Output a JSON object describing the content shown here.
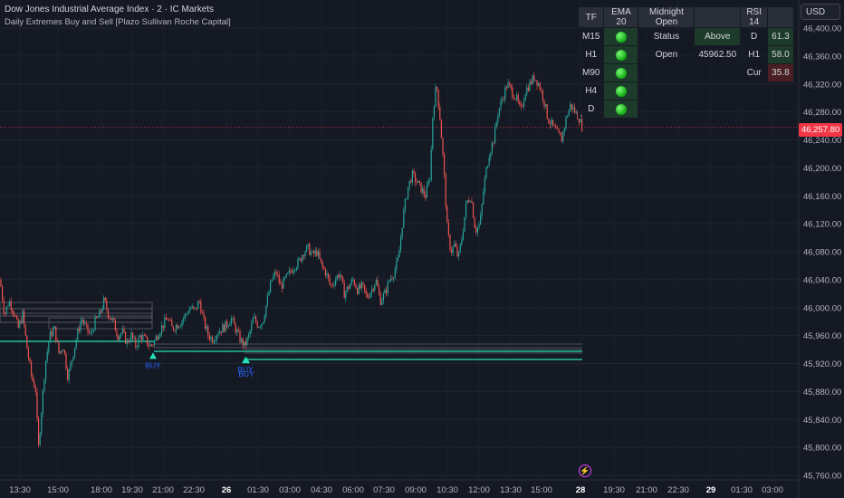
{
  "header": {
    "title": "Dow Jones Industrial Average Index · 2 · IC Markets",
    "subtitle": "Daily Extremes Buy and Sell [Plazo Sullivan Roche Capital]"
  },
  "currency": "USD",
  "last_price": "46,257.80",
  "colors": {
    "background": "#151924",
    "up": "#26a69a",
    "down": "#ef5350",
    "price_tag": "#f23645",
    "signal": "#26e0b8",
    "buy_label": "#2962ff"
  },
  "table": {
    "headers": [
      "TF",
      "EMA 20",
      "Midnight Open",
      "",
      "RSI 14",
      ""
    ],
    "ema_rows": [
      {
        "tf": "M15",
        "status": "green-dot-icon"
      },
      {
        "tf": "H1",
        "status": "green-dot-icon"
      },
      {
        "tf": "M90",
        "status": "green-dot-icon"
      },
      {
        "tf": "H4",
        "status": "green-dot-icon"
      },
      {
        "tf": "D",
        "status": "green-dot-icon"
      }
    ],
    "midnight": [
      {
        "label": "Status",
        "value": "Above"
      },
      {
        "label": "Open",
        "value": "45962.50"
      }
    ],
    "rsi": [
      {
        "tf": "D",
        "value": "61.3"
      },
      {
        "tf": "H1",
        "value": "58.0"
      },
      {
        "tf": "Cur",
        "value": "35.8"
      }
    ]
  },
  "chart_data": {
    "type": "candlestick",
    "y_ticks": [
      46400,
      46360,
      46320,
      46280,
      46240,
      46200,
      46160,
      46120,
      46080,
      46040,
      46000,
      45960,
      45920,
      45880,
      45840,
      45800,
      45760
    ],
    "y_tick_labels": [
      "46,400.00",
      "46,360.00",
      "46,320.00",
      "46,280.00",
      "46,240.00",
      "46,200.00",
      "46,160.00",
      "46,120.00",
      "46,080.00",
      "46,040.00",
      "46,000.00",
      "45,960.00",
      "45,920.00",
      "45,880.00",
      "45,840.00",
      "45,800.00",
      "45,760.00"
    ],
    "ylim": [
      45750,
      46420
    ],
    "x_tick_labels": [
      "13:30",
      "15:00",
      "18:00",
      "19:30",
      "21:00",
      "22:30",
      "26",
      "01:30",
      "03:00",
      "04:30",
      "06:00",
      "07:30",
      "09:00",
      "10:30",
      "12:00",
      "13:30",
      "15:00",
      "28",
      "19:30",
      "21:00",
      "22:30",
      "29",
      "01:30",
      "03:00"
    ],
    "bold_ticks": [
      "26",
      "28",
      "29"
    ],
    "last_price": 46257.8,
    "path": [
      [
        0,
        46040
      ],
      [
        5,
        45990
      ],
      [
        10,
        46010
      ],
      [
        15,
        45995
      ],
      [
        20,
        45970
      ],
      [
        25,
        45990
      ],
      [
        30,
        45940
      ],
      [
        35,
        45900
      ],
      [
        40,
        45880
      ],
      [
        42,
        45790
      ],
      [
        45,
        45840
      ],
      [
        50,
        45920
      ],
      [
        55,
        45960
      ],
      [
        60,
        45970
      ],
      [
        65,
        45935
      ],
      [
        70,
        45945
      ],
      [
        75,
        45900
      ],
      [
        80,
        45930
      ],
      [
        85,
        45960
      ],
      [
        90,
        45985
      ],
      [
        95,
        45970
      ],
      [
        100,
        45960
      ],
      [
        105,
        45980
      ],
      [
        110,
        45990
      ],
      [
        115,
        46010
      ],
      [
        120,
        45990
      ],
      [
        125,
        45980
      ],
      [
        130,
        45960
      ],
      [
        135,
        45965
      ],
      [
        140,
        45950
      ],
      [
        145,
        45960
      ],
      [
        150,
        45945
      ],
      [
        155,
        45960
      ],
      [
        160,
        45955
      ],
      [
        165,
        45945
      ],
      [
        170,
        45950
      ],
      [
        175,
        45965
      ],
      [
        180,
        45975
      ],
      [
        185,
        45985
      ],
      [
        190,
        45970
      ],
      [
        195,
        45975
      ],
      [
        200,
        45980
      ],
      [
        205,
        45990
      ],
      [
        210,
        46000
      ],
      [
        215,
        45995
      ],
      [
        220,
        46010
      ],
      [
        225,
        45980
      ],
      [
        230,
        45960
      ],
      [
        235,
        45955
      ],
      [
        240,
        45965
      ],
      [
        245,
        45970
      ],
      [
        250,
        45975
      ],
      [
        255,
        45985
      ],
      [
        260,
        45970
      ],
      [
        265,
        45955
      ],
      [
        270,
        45945
      ],
      [
        275,
        45960
      ],
      [
        280,
        45985
      ],
      [
        285,
        45975
      ],
      [
        290,
        45980
      ],
      [
        295,
        46010
      ],
      [
        300,
        46040
      ],
      [
        305,
        46050
      ],
      [
        310,
        46030
      ],
      [
        315,
        46040
      ],
      [
        320,
        46050
      ],
      [
        325,
        46060
      ],
      [
        330,
        46065
      ],
      [
        335,
        46080
      ],
      [
        340,
        46085
      ],
      [
        345,
        46075
      ],
      [
        350,
        46080
      ],
      [
        355,
        46060
      ],
      [
        360,
        46050
      ],
      [
        365,
        46030
      ],
      [
        370,
        46040
      ],
      [
        375,
        46050
      ],
      [
        380,
        46020
      ],
      [
        385,
        46030
      ],
      [
        390,
        46040
      ],
      [
        395,
        46025
      ],
      [
        400,
        46030
      ],
      [
        405,
        46015
      ],
      [
        410,
        46025
      ],
      [
        415,
        46040
      ],
      [
        420,
        46010
      ],
      [
        425,
        46020
      ],
      [
        430,
        46040
      ],
      [
        435,
        46050
      ],
      [
        440,
        46070
      ],
      [
        445,
        46130
      ],
      [
        450,
        46170
      ],
      [
        455,
        46190
      ],
      [
        460,
        46180
      ],
      [
        465,
        46170
      ],
      [
        470,
        46160
      ],
      [
        475,
        46190
      ],
      [
        478,
        46280
      ],
      [
        482,
        46320
      ],
      [
        486,
        46270
      ],
      [
        490,
        46200
      ],
      [
        494,
        46110
      ],
      [
        498,
        46080
      ],
      [
        502,
        46090
      ],
      [
        506,
        46070
      ],
      [
        510,
        46100
      ],
      [
        515,
        46150
      ],
      [
        520,
        46160
      ],
      [
        525,
        46110
      ],
      [
        530,
        46120
      ],
      [
        535,
        46180
      ],
      [
        540,
        46220
      ],
      [
        545,
        46240
      ],
      [
        550,
        46280
      ],
      [
        555,
        46300
      ],
      [
        560,
        46320
      ],
      [
        565,
        46310
      ],
      [
        570,
        46300
      ],
      [
        575,
        46280
      ],
      [
        580,
        46310
      ],
      [
        585,
        46320
      ],
      [
        590,
        46330
      ],
      [
        595,
        46320
      ],
      [
        600,
        46300
      ],
      [
        605,
        46270
      ],
      [
        610,
        46260
      ],
      [
        615,
        46250
      ],
      [
        620,
        46240
      ],
      [
        625,
        46270
      ],
      [
        630,
        46290
      ],
      [
        635,
        46280
      ],
      [
        640,
        46270
      ],
      [
        643,
        46258
      ]
    ],
    "signals": [
      {
        "label": "BUY",
        "x": 169,
        "price": 45946
      },
      {
        "label": "BUY",
        "x": 271,
        "price": 45940
      },
      {
        "label": "BUY",
        "x": 272,
        "price": 45940
      }
    ]
  }
}
